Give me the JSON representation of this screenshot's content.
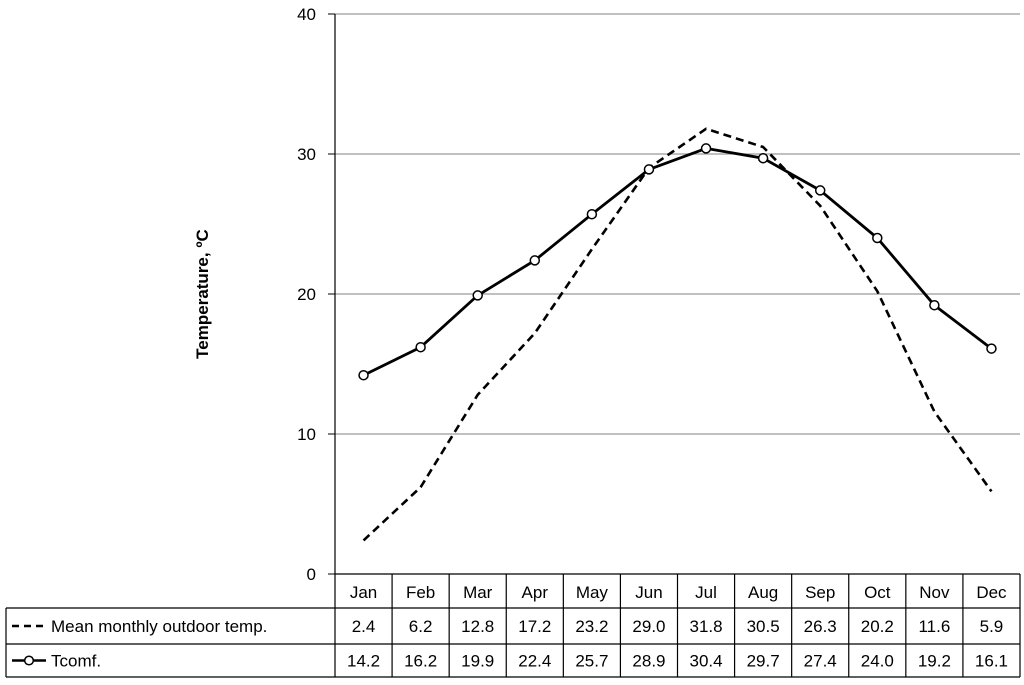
{
  "chart_data": {
    "type": "line",
    "title": "",
    "xlabel": "",
    "ylabel": "Temperature, ºC",
    "ylim": [
      0,
      40
    ],
    "yticks": [
      0,
      10,
      20,
      30,
      40
    ],
    "grid": true,
    "legend": "data-table-left",
    "categories": [
      "Jan",
      "Feb",
      "Mar",
      "Apr",
      "May",
      "Jun",
      "Jul",
      "Aug",
      "Sep",
      "Oct",
      "Nov",
      "Dec"
    ],
    "series": [
      {
        "name": "Mean monthly outdoor temp.",
        "style": "dashed",
        "marker": "none",
        "color": "#000000",
        "values": [
          2.4,
          6.2,
          12.8,
          17.2,
          23.2,
          29.0,
          31.8,
          30.5,
          26.3,
          20.2,
          11.6,
          5.9
        ],
        "labels": [
          "2.4",
          "6.2",
          "12.8",
          "17.2",
          "23.2",
          "29.0",
          "31.8",
          "30.5",
          "26.3",
          "20.2",
          "11.6",
          "5.9"
        ]
      },
      {
        "name": "Tcomf.",
        "style": "solid",
        "marker": "circle",
        "color": "#000000",
        "values": [
          14.2,
          16.2,
          19.9,
          22.4,
          25.7,
          28.9,
          30.4,
          29.7,
          27.4,
          24.0,
          19.2,
          16.1
        ],
        "labels": [
          "14.2",
          "16.2",
          "19.9",
          "22.4",
          "25.7",
          "28.9",
          "30.4",
          "29.7",
          "27.4",
          "24.0",
          "19.2",
          "16.1"
        ]
      }
    ]
  }
}
